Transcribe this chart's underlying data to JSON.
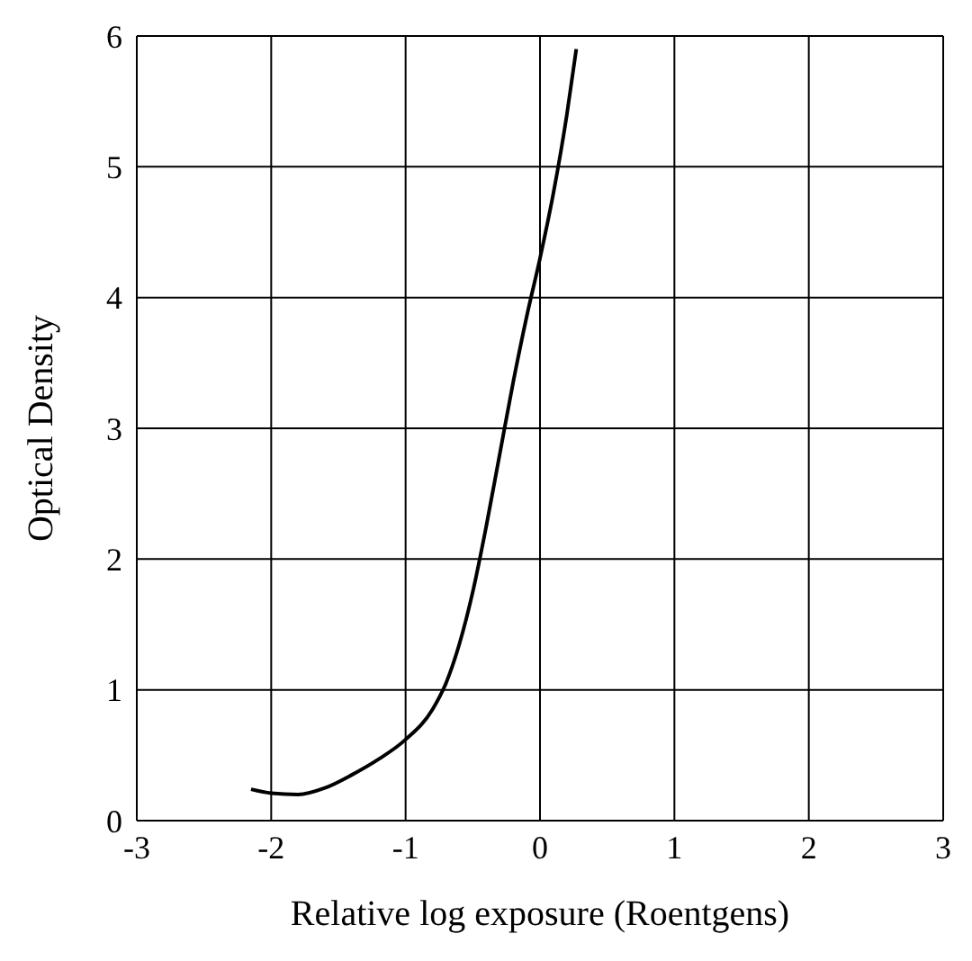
{
  "chart_data": {
    "type": "line",
    "xlabel": "Relative log exposure (Roentgens)",
    "ylabel": "Optical Density",
    "x": [
      -2.15,
      -2.0,
      -1.8,
      -1.6,
      -1.4,
      -1.2,
      -1.0,
      -0.8,
      -0.7,
      -0.6,
      -0.5,
      -0.4,
      -0.3,
      -0.2,
      -0.1,
      0,
      0.1,
      0.2,
      0.27
    ],
    "series": [
      {
        "color": "#000000",
        "values": [
          0.24,
          0.21,
          0.2,
          0.25,
          0.35,
          0.47,
          0.62,
          0.85,
          1.05,
          1.35,
          1.75,
          2.25,
          2.8,
          3.35,
          3.85,
          4.3,
          4.8,
          5.4,
          5.9
        ]
      }
    ],
    "xlim": [
      -3,
      3
    ],
    "xticks": [
      -3,
      -2,
      -1,
      0,
      1,
      2,
      3
    ],
    "ylim": [
      0,
      6
    ],
    "yticks": [
      0,
      1,
      2,
      3,
      4,
      5,
      6
    ],
    "grid": true
  }
}
